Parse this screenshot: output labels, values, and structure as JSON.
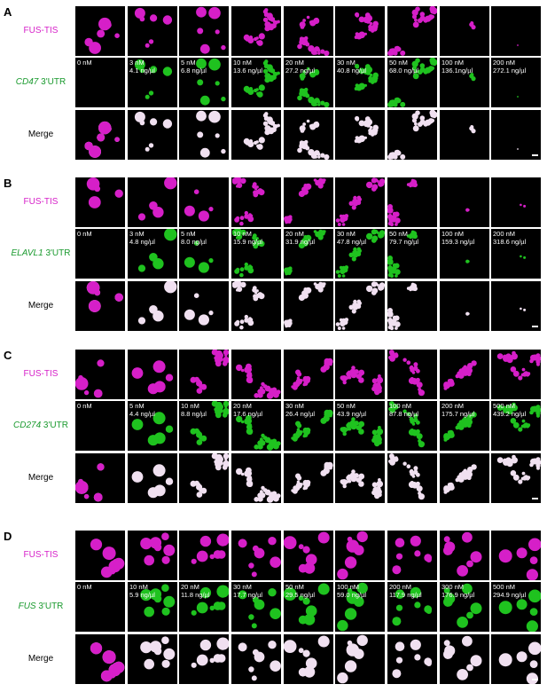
{
  "colors": {
    "magenta": "#d61fc8",
    "green": "#1fc21f",
    "merge": "#f0e0f0",
    "utr_label": "#1a9a2e",
    "fus_label": "#d61fc8"
  },
  "panels": [
    {
      "letter": "A",
      "fus_label": "FUS-TIS",
      "utr_gene": "CD47",
      "utr_suffix": " 3'UTR",
      "merge_label": "Merge",
      "pattern": [
        "droplets",
        "droplets",
        "droplets",
        "network",
        "network",
        "network",
        "network",
        "sparse",
        "empty"
      ],
      "columns": [
        {
          "nm": "0 nM",
          "ng": ""
        },
        {
          "nm": "3 nM",
          "ng": "4.1 ng/µl"
        },
        {
          "nm": "5 nM",
          "ng": "6.8 ng/µl"
        },
        {
          "nm": "10 nM",
          "ng": "13.6 ng/µl"
        },
        {
          "nm": "20 nM",
          "ng": "27.2 ng/µl"
        },
        {
          "nm": "30 nM",
          "ng": "40.8 ng/µl"
        },
        {
          "nm": "50 nM",
          "ng": "68.0 ng/µl"
        },
        {
          "nm": "100 nM",
          "ng": "136.1ng/µl"
        },
        {
          "nm": "200 nM",
          "ng": "272.1 ng/µl"
        }
      ]
    },
    {
      "letter": "B",
      "fus_label": "FUS-TIS",
      "utr_gene": "ELAVL1",
      "utr_suffix": " 3'UTR",
      "merge_label": "Merge",
      "pattern": [
        "droplets",
        "droplets",
        "droplets",
        "network",
        "network",
        "network",
        "network",
        "sparse",
        "sparse"
      ],
      "columns": [
        {
          "nm": "0 nM",
          "ng": ""
        },
        {
          "nm": "3 nM",
          "ng": "4.8 ng/µl"
        },
        {
          "nm": "5 nM",
          "ng": "8.0 ng/µl"
        },
        {
          "nm": "10 nM",
          "ng": "15.9 ng/µl"
        },
        {
          "nm": "20 nM",
          "ng": "31.9 ng/µl"
        },
        {
          "nm": "30 nM",
          "ng": "47.8 ng/µl"
        },
        {
          "nm": "50 nM",
          "ng": "79.7 ng/µl"
        },
        {
          "nm": "100 nM",
          "ng": "159.3 ng/µl"
        },
        {
          "nm": "200 nM",
          "ng": "318.6 ng/µl"
        }
      ]
    },
    {
      "letter": "C",
      "fus_label": "FUS-TIS",
      "utr_gene": "CD274",
      "utr_suffix": " 3'UTR",
      "merge_label": "Merge",
      "pattern": [
        "droplets",
        "droplets",
        "network",
        "network",
        "network",
        "network",
        "network",
        "network",
        "network"
      ],
      "columns": [
        {
          "nm": "0 nM",
          "ng": ""
        },
        {
          "nm": "5 nM",
          "ng": "4.4 ng/µl"
        },
        {
          "nm": "10 nM",
          "ng": "8.8 ng/µl"
        },
        {
          "nm": "20 nM",
          "ng": "17.6 ng/µl"
        },
        {
          "nm": "30 nM",
          "ng": "26.4 ng/µl"
        },
        {
          "nm": "50 nM",
          "ng": "43.9 ng/µl"
        },
        {
          "nm": "100 nM",
          "ng": "87.8 ng/µl"
        },
        {
          "nm": "200 nM",
          "ng": "175.7 ng/µl"
        },
        {
          "nm": "500 nM",
          "ng": "439.2 ng/µl"
        }
      ]
    },
    {
      "letter": "D",
      "fus_label": "FUS-TIS",
      "utr_gene": "FUS",
      "utr_suffix": " 3'UTR",
      "merge_label": "Merge",
      "pattern": [
        "droplets",
        "droplets",
        "droplets",
        "droplets",
        "droplets",
        "droplets",
        "droplets",
        "droplets",
        "droplets"
      ],
      "columns": [
        {
          "nm": "0 nM",
          "ng": ""
        },
        {
          "nm": "10 nM",
          "ng": "5.9 ng/µl"
        },
        {
          "nm": "20 nM",
          "ng": "11.8 ng/µl"
        },
        {
          "nm": "30 nM",
          "ng": "17.7 ng/µl"
        },
        {
          "nm": "50 nM",
          "ng": "29.5 ng/µl"
        },
        {
          "nm": "100 nM",
          "ng": "59.0 ng/µl"
        },
        {
          "nm": "200 nM",
          "ng": "117.9 ng/µl"
        },
        {
          "nm": "300 nM",
          "ng": "176.9 ng/µl"
        },
        {
          "nm": "500 nM",
          "ng": "294.9 ng/µl"
        }
      ]
    }
  ]
}
